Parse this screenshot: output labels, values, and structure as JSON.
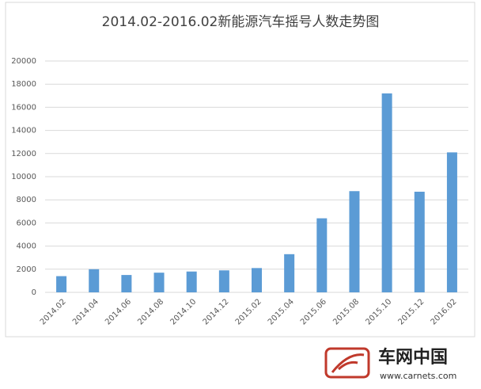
{
  "chart_data": {
    "type": "bar",
    "title": "2014.02-2016.02新能源汽车摇号人数走势图",
    "categories": [
      "2014.02",
      "2014.04",
      "2014.06",
      "2014.08",
      "2014.10",
      "2014.12",
      "2015.02",
      "2015.04",
      "2015.06",
      "2015.08",
      "2015.10",
      "2015.12",
      "2016.02"
    ],
    "values": [
      1400,
      2000,
      1500,
      1700,
      1800,
      1900,
      2100,
      3300,
      6400,
      8750,
      17200,
      8700,
      12100
    ],
    "color": "#5b9bd5",
    "ylim": [
      0,
      20000
    ],
    "yticks": [
      0,
      2000,
      4000,
      6000,
      8000,
      10000,
      12000,
      14000,
      16000,
      18000,
      20000
    ],
    "grid": true
  },
  "watermark": {
    "brand": "车网中国",
    "url": "www.carnets.com"
  }
}
